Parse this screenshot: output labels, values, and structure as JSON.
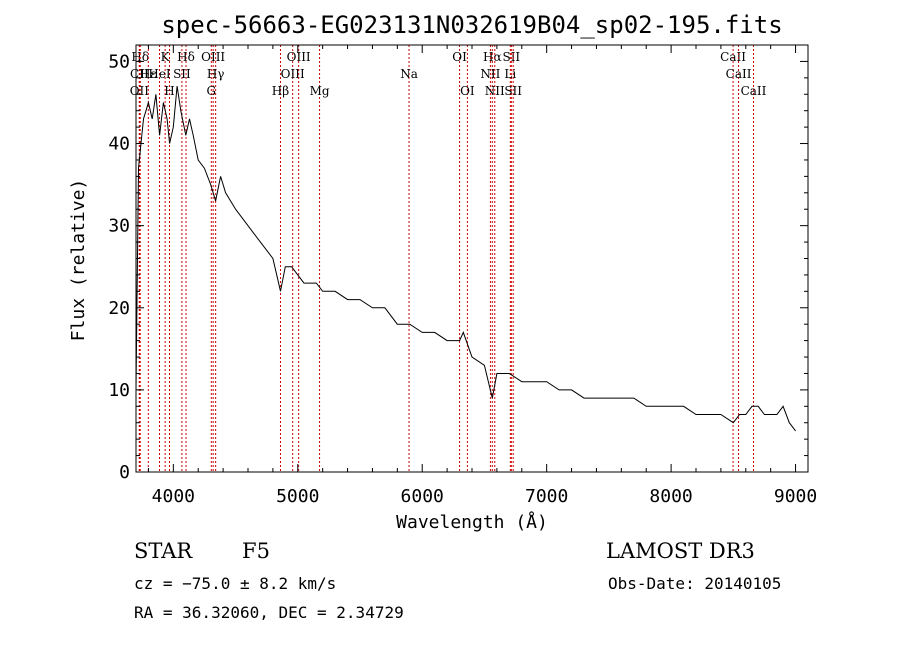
{
  "chart_data": {
    "type": "line",
    "title": "spec-56663-EG023131N032619B04_sp02-195.fits",
    "xlabel": "Wavelength (Å)",
    "ylabel": "Flux (relative)",
    "xlim": [
      3700,
      9100
    ],
    "ylim": [
      0,
      52
    ],
    "xticks": [
      4000,
      5000,
      6000,
      7000,
      8000,
      9000
    ],
    "yticks": [
      0,
      10,
      20,
      30,
      40,
      50
    ],
    "grid": false,
    "series": [
      {
        "x": [
          3700,
          3720,
          3740,
          3760,
          3780,
          3800,
          3830,
          3860,
          3890,
          3920,
          3950,
          3970,
          4000,
          4030,
          4060,
          4100,
          4130,
          4160,
          4200,
          4250,
          4300,
          4340,
          4380,
          4420,
          4460,
          4500,
          4550,
          4600,
          4650,
          4700,
          4750,
          4800,
          4861,
          4900,
          4950,
          5000,
          5050,
          5100,
          5150,
          5200,
          5300,
          5400,
          5500,
          5600,
          5700,
          5800,
          5900,
          6000,
          6100,
          6200,
          6300,
          6330,
          6400,
          6500,
          6563,
          6600,
          6650,
          6700,
          6800,
          6900,
          7000,
          7100,
          7200,
          7300,
          7400,
          7500,
          7600,
          7700,
          7800,
          7900,
          8000,
          8100,
          8200,
          8300,
          8400,
          8500,
          8550,
          8600,
          8650,
          8700,
          8750,
          8800,
          8850,
          8900,
          8950,
          9000
        ],
        "y": [
          10,
          37,
          40,
          43,
          44,
          45,
          43,
          46,
          41,
          45,
          43,
          40,
          42,
          47,
          44,
          41,
          43,
          41,
          38,
          37,
          35,
          33,
          36,
          34,
          33,
          32,
          31,
          30,
          29,
          28,
          27,
          26,
          22,
          25,
          25,
          24,
          23,
          23,
          23,
          22,
          22,
          21,
          21,
          20,
          20,
          18,
          18,
          17,
          17,
          16,
          16,
          17,
          14,
          13,
          9,
          12,
          12,
          12,
          11,
          11,
          11,
          10,
          10,
          9,
          9,
          9,
          9,
          9,
          8,
          8,
          8,
          8,
          7,
          7,
          7,
          6,
          7,
          7,
          8,
          8,
          7,
          7,
          7,
          8,
          6,
          5
        ]
      }
    ],
    "line_markers": [
      {
        "label": "Hδ",
        "x": 3734,
        "row": 1
      },
      {
        "label": "OII",
        "x": 3727,
        "row": 3
      },
      {
        "label": "CII",
        "x": 3727,
        "row": 2
      },
      {
        "label": "Hε",
        "x": 3799,
        "row": 2
      },
      {
        "label": "K",
        "x": 3934,
        "row": 1
      },
      {
        "label": "H",
        "x": 3969,
        "row": 3
      },
      {
        "label": "HeI",
        "x": 3889,
        "row": 2
      },
      {
        "label": "SII",
        "x": 4069,
        "row": 2
      },
      {
        "label": "Hδ",
        "x": 4102,
        "row": 1
      },
      {
        "label": "OIII",
        "x": 4320,
        "row": 1
      },
      {
        "label": "Hγ",
        "x": 4340,
        "row": 2
      },
      {
        "label": "G",
        "x": 4305,
        "row": 3
      },
      {
        "label": "Hβ",
        "x": 4861,
        "row": 3
      },
      {
        "label": "OIII",
        "x": 4959,
        "row": 2
      },
      {
        "label": "OIII",
        "x": 5007,
        "row": 1
      },
      {
        "label": "Mg",
        "x": 5175,
        "row": 3
      },
      {
        "label": "Na",
        "x": 5894,
        "row": 2
      },
      {
        "label": "OI",
        "x": 6300,
        "row": 1
      },
      {
        "label": "OI",
        "x": 6363,
        "row": 3
      },
      {
        "label": "Hα",
        "x": 6563,
        "row": 1
      },
      {
        "label": "NII",
        "x": 6548,
        "row": 2
      },
      {
        "label": "NII",
        "x": 6583,
        "row": 3
      },
      {
        "label": "SII",
        "x": 6716,
        "row": 1
      },
      {
        "label": "Li",
        "x": 6708,
        "row": 2
      },
      {
        "label": "SII",
        "x": 6731,
        "row": 3
      },
      {
        "label": "CaII",
        "x": 8498,
        "row": 1
      },
      {
        "label": "CaII",
        "x": 8542,
        "row": 2
      },
      {
        "label": "CaII",
        "x": 8662,
        "row": 3
      }
    ]
  },
  "info": {
    "object_class": "STAR",
    "subclass": "F5",
    "survey": "LAMOST DR3",
    "cz": "cz = −75.0 ± 8.2 km/s",
    "obs_date": "Obs-Date: 20140105",
    "coords": "RA =  36.32060, DEC =   2.34729"
  },
  "colors": {
    "line": "#000000",
    "marker": "#cc0000"
  }
}
